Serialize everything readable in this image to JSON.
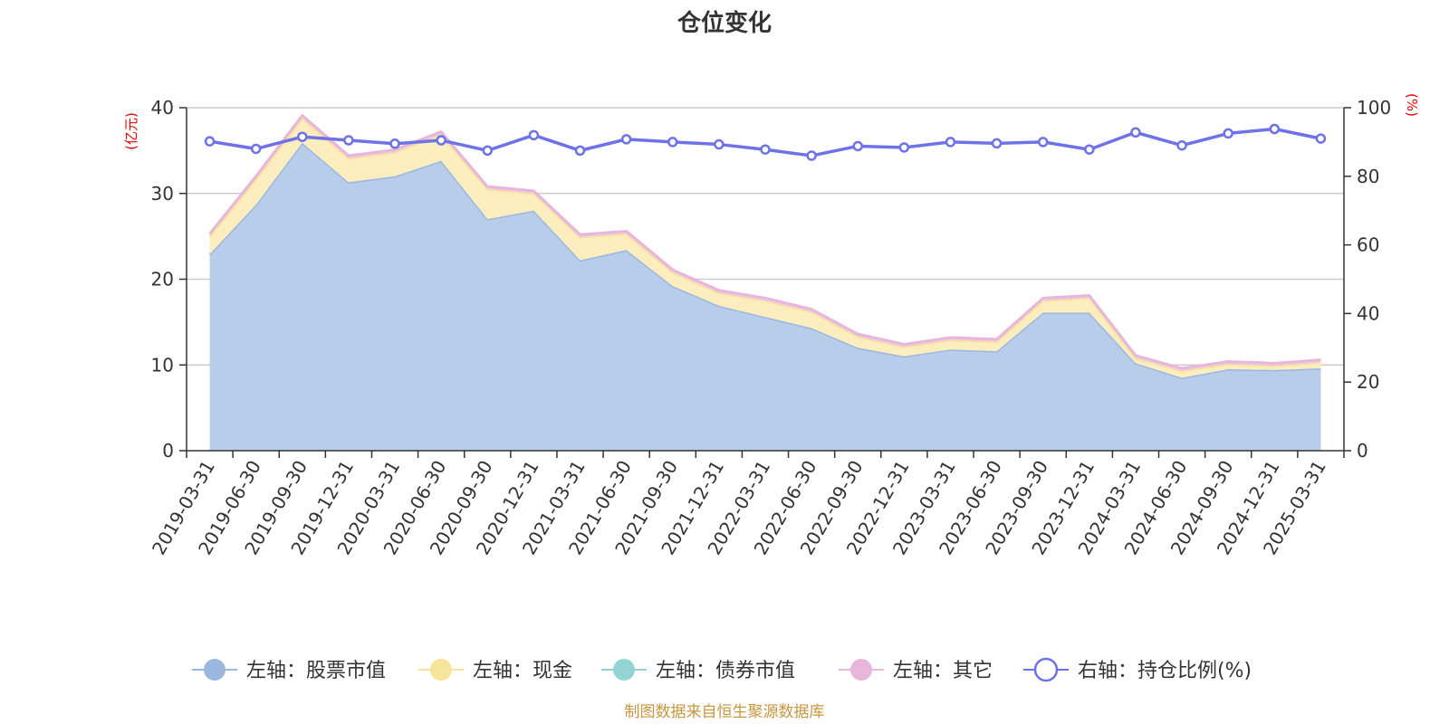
{
  "chart_data": {
    "type": "area",
    "title": "仓位变化",
    "left_axis_unit": "(亿元)",
    "right_axis_unit": "(%)",
    "left_ylim": [
      0,
      40
    ],
    "left_ticks": [
      "0",
      "10",
      "20",
      "30",
      "40"
    ],
    "right_ylim": [
      0,
      100
    ],
    "right_ticks": [
      "0",
      "20",
      "40",
      "60",
      "80",
      "100"
    ],
    "grid": true,
    "stacked": true,
    "legend_position": "bottom",
    "source": "制图数据来自恒生聚源数据库",
    "categories": [
      "2019-03-31",
      "2019-06-30",
      "2019-09-30",
      "2019-12-31",
      "2020-03-31",
      "2020-06-30",
      "2020-09-30",
      "2020-12-31",
      "2021-03-31",
      "2021-06-30",
      "2021-09-30",
      "2021-12-31",
      "2022-03-31",
      "2022-06-30",
      "2022-09-30",
      "2022-12-31",
      "2023-03-31",
      "2023-06-30",
      "2023-09-30",
      "2023-12-31",
      "2024-03-31",
      "2024-06-30",
      "2024-09-30",
      "2024-12-31",
      "2025-03-31"
    ],
    "series": [
      {
        "name": "左轴：股票市值",
        "axis": "left",
        "color": "#9ab7e0",
        "fill": "#b8cdea",
        "values": [
          22.9,
          28.7,
          35.9,
          31.3,
          32.0,
          33.8,
          27.0,
          28.0,
          22.2,
          23.4,
          19.2,
          16.9,
          15.6,
          14.3,
          12.0,
          11.0,
          11.8,
          11.6,
          16.1,
          16.1,
          10.2,
          8.5,
          9.5,
          9.4,
          9.6
        ]
      },
      {
        "name": "左轴：现金",
        "axis": "left",
        "color": "#f5e49a",
        "fill": "#fbedbd",
        "values": [
          2.1,
          3.0,
          2.9,
          2.8,
          2.8,
          3.1,
          3.5,
          2.0,
          2.7,
          1.9,
          1.6,
          1.5,
          1.9,
          1.9,
          1.3,
          1.1,
          1.1,
          1.1,
          1.4,
          1.7,
          0.6,
          0.8,
          0.6,
          0.5,
          0.7
        ]
      },
      {
        "name": "左轴：债券市值",
        "axis": "left",
        "color": "#93d3d3",
        "fill": "#a9dcdc",
        "values": [
          0,
          0,
          0,
          0,
          0,
          0,
          0,
          0,
          0,
          0,
          0,
          0,
          0,
          0,
          0,
          0,
          0,
          0,
          0,
          0,
          0,
          0,
          0,
          0,
          0
        ]
      },
      {
        "name": "左轴：其它",
        "axis": "left",
        "color": "#e7b6da",
        "fill": "#efc8e3",
        "values": [
          0.3,
          0.3,
          0.3,
          0.3,
          0.3,
          0.3,
          0.3,
          0.3,
          0.3,
          0.3,
          0.3,
          0.3,
          0.3,
          0.3,
          0.3,
          0.3,
          0.3,
          0.3,
          0.3,
          0.3,
          0.3,
          0.3,
          0.3,
          0.3,
          0.3
        ]
      },
      {
        "name": "右轴：持仓比例(%)",
        "axis": "right",
        "color": "#6e72e8",
        "type": "line",
        "values": [
          90.2,
          88.0,
          91.5,
          90.5,
          89.5,
          90.5,
          87.5,
          92.0,
          87.5,
          90.8,
          90.0,
          89.3,
          87.8,
          86.0,
          88.8,
          88.4,
          90.0,
          89.6,
          90.0,
          87.8,
          92.8,
          89.0,
          92.5,
          93.8,
          91.0
        ]
      }
    ]
  }
}
